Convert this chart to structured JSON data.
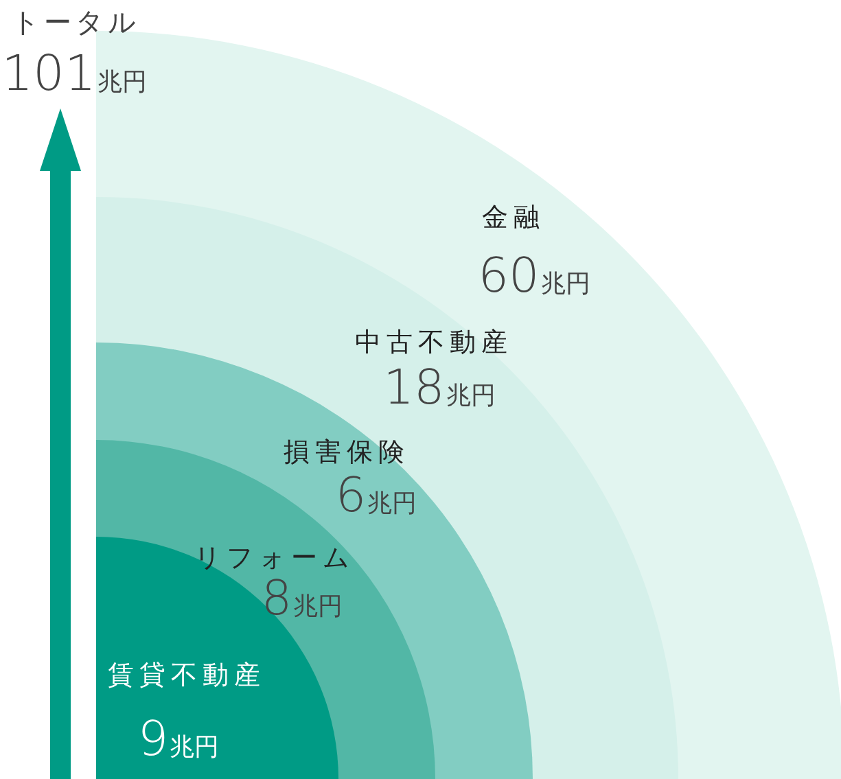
{
  "chart_data": {
    "type": "other",
    "categories": [
      "賃貸不動産",
      "リフォーム",
      "損害保険",
      "中古不動産",
      "金融"
    ],
    "values": [
      9,
      8,
      6,
      18,
      60
    ],
    "value_labels": [
      "9兆円",
      "8兆円",
      "6兆円",
      "18兆円",
      "60兆円"
    ],
    "colors": [
      "#009b85",
      "#52b7a6",
      "#82cdc2",
      "#d5f0ea",
      "#e2f5f0"
    ],
    "annotations": [
      "トータル",
      "101兆円"
    ]
  }
}
